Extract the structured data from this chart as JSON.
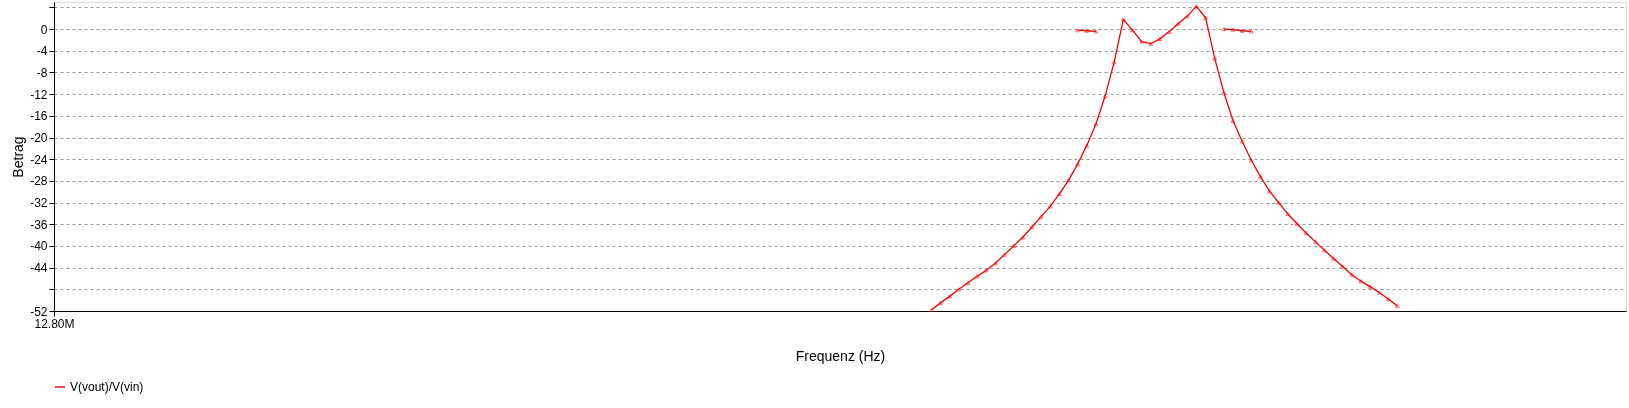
{
  "chart_data": {
    "type": "line",
    "xlabel": "Frequenz (Hz)",
    "ylabel": "Betrag",
    "categories": [
      "12.80M",
      null,
      null,
      null,
      null,
      null,
      null,
      null,
      null,
      null,
      null,
      null,
      null,
      null,
      null,
      null,
      null,
      null,
      null,
      null,
      null,
      null,
      null,
      null,
      null,
      null,
      null,
      null,
      null,
      null,
      null,
      null,
      null,
      null,
      null,
      null,
      null,
      null,
      null,
      null,
      null,
      null,
      null,
      null,
      null,
      null,
      null,
      null,
      null,
      null,
      null,
      null,
      null,
      null,
      null,
      null,
      null,
      null,
      null,
      null,
      null,
      null,
      null,
      null,
      null,
      null,
      null,
      null,
      null,
      null,
      null,
      null,
      null,
      null,
      null,
      null,
      null,
      null,
      null,
      null,
      null,
      null,
      null,
      null,
      null,
      null,
      null,
      null,
      null,
      null,
      null,
      null,
      null,
      null,
      null,
      null,
      null,
      null,
      null,
      null,
      null,
      null,
      null,
      null,
      null,
      null,
      null,
      null,
      null,
      null,
      null,
      null,
      null,
      null,
      null,
      null,
      null,
      null,
      null,
      null,
      null,
      null,
      null,
      null,
      null,
      null,
      null,
      null,
      null,
      null,
      null,
      null,
      null,
      null,
      null,
      null,
      null,
      null,
      null,
      null,
      null,
      null,
      null,
      null,
      null,
      null,
      null,
      null,
      null,
      null,
      null,
      null,
      null,
      null,
      null,
      null,
      null,
      null,
      null,
      null,
      null,
      null,
      null,
      null,
      null,
      null,
      null,
      null,
      null,
      null,
      null,
      null,
      null
    ],
    "series": [
      {
        "name": "V(vout)/V(vin)",
        "color": "#ff0000",
        "values": [
          null,
          null,
          null,
          null,
          null,
          null,
          null,
          null,
          null,
          null,
          null,
          null,
          null,
          null,
          null,
          null,
          null,
          null,
          null,
          null,
          null,
          null,
          null,
          null,
          null,
          null,
          null,
          null,
          null,
          null,
          null,
          null,
          null,
          null,
          null,
          null,
          null,
          null,
          null,
          null,
          null,
          null,
          null,
          null,
          null,
          null,
          null,
          null,
          null,
          null,
          null,
          null,
          null,
          null,
          null,
          null,
          null,
          null,
          null,
          null,
          null,
          null,
          null,
          null,
          null,
          null,
          null,
          null,
          null,
          null,
          null,
          null,
          null,
          null,
          null,
          null,
          null,
          null,
          null,
          null,
          null,
          null,
          null,
          null,
          null,
          null,
          null,
          null,
          null,
          null,
          null,
          null,
          null,
          null,
          null,
          null,
          -51.8,
          -50.5,
          -49.3,
          -48.0,
          -46.8,
          -45.6,
          -44.5,
          -43.2,
          -41.6,
          -40.0,
          -38.4,
          -36.5,
          -34.6,
          -32.7,
          -30.4,
          -27.9,
          -24.9,
          -21.5,
          -17.5,
          -12.4,
          -6.1,
          1.8,
          -0.2,
          -2.3,
          -2.7,
          -1.8,
          -0.5,
          1.0,
          2.4,
          4.2,
          2.1,
          -5.4,
          -11.7,
          -16.9,
          -20.7,
          -24.2,
          -27.2,
          -29.9,
          -32.0,
          -34.1,
          -35.9,
          -37.6,
          -39.2,
          -40.8,
          -42.3,
          -43.8,
          -45.3,
          -46.5,
          -47.5,
          -48.6,
          -49.8,
          -51.1,
          null,
          null,
          null,
          null,
          null,
          null,
          null,
          null,
          null,
          null,
          null,
          null,
          null,
          null,
          null,
          null,
          null,
          null,
          null,
          null,
          null,
          null,
          null,
          null,
          null
        ]
      },
      {
        "color": "#ee0000",
        "values": [
          null,
          null,
          null,
          null,
          null,
          null,
          null,
          null,
          null,
          null,
          null,
          null,
          null,
          null,
          null,
          null,
          null,
          null,
          null,
          null,
          null,
          null,
          null,
          null,
          null,
          null,
          null,
          null,
          null,
          null,
          null,
          null,
          null,
          null,
          null,
          null,
          null,
          null,
          null,
          null,
          null,
          null,
          null,
          null,
          null,
          null,
          null,
          null,
          null,
          null,
          null,
          null,
          null,
          null,
          null,
          null,
          null,
          null,
          null,
          null,
          null,
          null,
          null,
          null,
          null,
          null,
          null,
          null,
          null,
          null,
          null,
          null,
          null,
          null,
          null,
          null,
          null,
          null,
          null,
          null,
          null,
          null,
          null,
          null,
          null,
          null,
          null,
          null,
          null,
          null,
          null,
          null,
          null,
          null,
          null,
          null,
          null,
          null,
          null,
          null,
          null,
          null,
          null,
          null,
          null,
          null,
          null,
          null,
          null,
          null,
          null,
          null,
          -0.2,
          -0.3,
          -0.4,
          null,
          null,
          null,
          null,
          null,
          null,
          null,
          null,
          null,
          null,
          null,
          null,
          null,
          null,
          null,
          null,
          null,
          null,
          null,
          null,
          null,
          null,
          null,
          null,
          null,
          null,
          null,
          null,
          null,
          null,
          null,
          null,
          null,
          null,
          null,
          null,
          null,
          null,
          null,
          null,
          null,
          null,
          null,
          null,
          null,
          null,
          null,
          null,
          null,
          null,
          null,
          null,
          null,
          null,
          null,
          null,
          null,
          null
        ]
      },
      {
        "color": "#dd0000",
        "values": [
          null,
          null,
          null,
          null,
          null,
          null,
          null,
          null,
          null,
          null,
          null,
          null,
          null,
          null,
          null,
          null,
          null,
          null,
          null,
          null,
          null,
          null,
          null,
          null,
          null,
          null,
          null,
          null,
          null,
          null,
          null,
          null,
          null,
          null,
          null,
          null,
          null,
          null,
          null,
          null,
          null,
          null,
          null,
          null,
          null,
          null,
          null,
          null,
          null,
          null,
          null,
          null,
          null,
          null,
          null,
          null,
          null,
          null,
          null,
          null,
          null,
          null,
          null,
          null,
          null,
          null,
          null,
          null,
          null,
          null,
          null,
          null,
          null,
          null,
          null,
          null,
          null,
          null,
          null,
          null,
          null,
          null,
          null,
          null,
          null,
          null,
          null,
          null,
          null,
          null,
          null,
          null,
          null,
          null,
          null,
          null,
          null,
          null,
          null,
          null,
          null,
          null,
          null,
          null,
          null,
          null,
          null,
          null,
          null,
          null,
          null,
          null,
          null,
          null,
          null,
          null,
          null,
          null,
          null,
          null,
          null,
          null,
          null,
          null,
          null,
          null,
          null,
          null,
          0.0,
          -0.1,
          -0.3,
          -0.4,
          null,
          null,
          null,
          null,
          null,
          null,
          null,
          null,
          null,
          null,
          null,
          null,
          null,
          null,
          null,
          null,
          null,
          null,
          null,
          null,
          null,
          null,
          null,
          null,
          null,
          null,
          null,
          null,
          null,
          null,
          null,
          null,
          null,
          null,
          null,
          null,
          null,
          null,
          null,
          null,
          null
        ]
      }
    ],
    "ylim": [
      -52,
      5
    ],
    "yticks": [
      {
        "value": 4,
        "label": null
      },
      0,
      -4,
      -8,
      -12,
      -16,
      -20,
      -24,
      -28,
      -32,
      -36,
      -40,
      -44,
      {
        "value": -48,
        "label": null
      },
      -52
    ],
    "grid": "y",
    "legend": "bottom left",
    "marker": "triangle",
    "line_style": "solid"
  }
}
